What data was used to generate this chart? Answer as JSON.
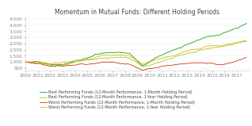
{
  "title": "Momentum in Mutual Funds: Different Holding Periods",
  "years": [
    2000,
    2001,
    2002,
    2003,
    2004,
    2005,
    2006,
    2007,
    2008,
    2009,
    2010,
    2011,
    2012,
    2013,
    2014,
    2015,
    2016,
    2017
  ],
  "ylim": [
    300,
    4700
  ],
  "yticks": [
    500,
    1000,
    1500,
    2000,
    2500,
    3000,
    3500,
    4000,
    4500
  ],
  "legend_labels": [
    "Best Performing Funds (12-Month Performance, 1-Month Holding Period)",
    "Best Performing Funds (12-Month Performance, 1-Year Holding Period)",
    "Worst Performing Funds (12-Month Performance, 1-Month Holding Period)",
    "Worst Performing Funds (12-Month Performance, 1-Year Holding Period)"
  ],
  "colors": [
    "#009900",
    "#99cc00",
    "#cc2200",
    "#ddaa00"
  ],
  "background_color": "#ffffff",
  "title_fontsize": 5.5,
  "legend_fontsize": 3.6,
  "tick_fontsize": 4.2
}
